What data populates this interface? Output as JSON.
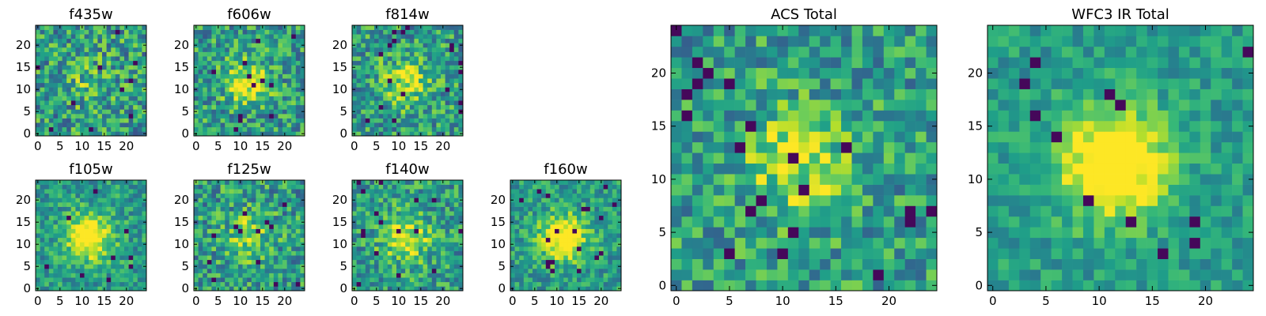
{
  "chart_data": [
    {
      "type": "heatmap",
      "title": "f435w",
      "cmap": "viridis",
      "xlim": [
        0,
        24
      ],
      "ylim": [
        0,
        24
      ],
      "xticks": [
        "0",
        "5",
        "10",
        "15",
        "20"
      ],
      "yticks": [
        "0",
        "5",
        "10",
        "15",
        "20"
      ],
      "grid_size": 25,
      "center_brightness": 0.15,
      "noise": 0.6
    },
    {
      "type": "heatmap",
      "title": "f606w",
      "cmap": "viridis",
      "xlim": [
        0,
        24
      ],
      "ylim": [
        0,
        24
      ],
      "xticks": [
        "0",
        "5",
        "10",
        "15",
        "20"
      ],
      "yticks": [
        "0",
        "5",
        "10",
        "15",
        "20"
      ],
      "grid_size": 25,
      "center_brightness": 0.35,
      "noise": 0.55
    },
    {
      "type": "heatmap",
      "title": "f814w",
      "cmap": "viridis",
      "xlim": [
        0,
        24
      ],
      "ylim": [
        0,
        24
      ],
      "xticks": [
        "0",
        "5",
        "10",
        "15",
        "20"
      ],
      "yticks": [
        "0",
        "5",
        "10",
        "15",
        "20"
      ],
      "grid_size": 25,
      "center_brightness": 0.35,
      "noise": 0.55
    },
    {
      "type": "heatmap",
      "title": "f105w",
      "cmap": "viridis",
      "xlim": [
        0,
        24
      ],
      "ylim": [
        0,
        24
      ],
      "xticks": [
        "0",
        "5",
        "10",
        "15",
        "20"
      ],
      "yticks": [
        "0",
        "5",
        "10",
        "15",
        "20"
      ],
      "grid_size": 25,
      "center_brightness": 0.6,
      "noise": 0.4
    },
    {
      "type": "heatmap",
      "title": "f125w",
      "cmap": "viridis",
      "xlim": [
        0,
        24
      ],
      "ylim": [
        0,
        24
      ],
      "xticks": [
        "0",
        "5",
        "10",
        "15",
        "20"
      ],
      "yticks": [
        "0",
        "5",
        "10",
        "15",
        "20"
      ],
      "grid_size": 25,
      "center_brightness": 0.3,
      "noise": 0.55
    },
    {
      "type": "heatmap",
      "title": "f140w",
      "cmap": "viridis",
      "xlim": [
        0,
        24
      ],
      "ylim": [
        0,
        24
      ],
      "xticks": [
        "0",
        "5",
        "10",
        "15",
        "20"
      ],
      "yticks": [
        "0",
        "5",
        "10",
        "15",
        "20"
      ],
      "grid_size": 25,
      "center_brightness": 0.45,
      "noise": 0.5
    },
    {
      "type": "heatmap",
      "title": "f160w",
      "cmap": "viridis",
      "xlim": [
        0,
        24
      ],
      "ylim": [
        0,
        24
      ],
      "xticks": [
        "0",
        "5",
        "10",
        "15",
        "20"
      ],
      "yticks": [
        "0",
        "5",
        "10",
        "15",
        "20"
      ],
      "grid_size": 25,
      "center_brightness": 0.6,
      "noise": 0.4
    },
    {
      "type": "heatmap",
      "title": "ACS Total",
      "cmap": "viridis",
      "xlim": [
        0,
        24
      ],
      "ylim": [
        0,
        24
      ],
      "xticks": [
        "0",
        "5",
        "10",
        "15",
        "20"
      ],
      "yticks": [
        "0",
        "5",
        "10",
        "15",
        "20"
      ],
      "grid_size": 25,
      "center_brightness": 0.35,
      "noise": 0.5
    },
    {
      "type": "heatmap",
      "title": "WFC3 IR Total",
      "cmap": "viridis",
      "xlim": [
        0,
        24
      ],
      "ylim": [
        0,
        24
      ],
      "xticks": [
        "0",
        "5",
        "10",
        "15",
        "20"
      ],
      "yticks": [
        "0",
        "5",
        "10",
        "15",
        "20"
      ],
      "grid_size": 25,
      "center_brightness": 0.7,
      "noise": 0.3
    }
  ],
  "colors": {
    "background": "#ffffff",
    "axis": "#000000"
  }
}
